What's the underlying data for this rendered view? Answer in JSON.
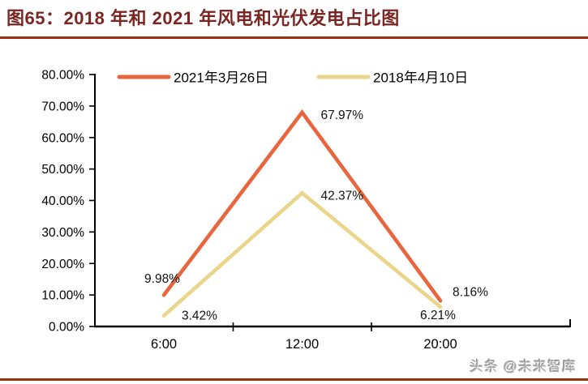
{
  "figure": {
    "title": "图65：2018 年和 2021 年风电和光伏发电占比图",
    "watermark": "头条 @未来智库",
    "title_color": "#7A2622",
    "rule_color": "#9C2F0C"
  },
  "chart_data": {
    "type": "line",
    "title": "",
    "categories": [
      "6:00",
      "12:00",
      "20:00"
    ],
    "series": [
      {
        "name": "2021年3月26日",
        "color": "#E7663E",
        "values": [
          9.98,
          67.97,
          8.16
        ],
        "value_labels": [
          "9.98%",
          "67.97%",
          "8.16%"
        ]
      },
      {
        "name": "2018年4月10日",
        "color": "#EAD58A",
        "values": [
          3.42,
          42.37,
          6.21
        ],
        "value_labels": [
          "3.42%",
          "42.37%",
          "6.21%"
        ]
      }
    ],
    "xlabel": "",
    "ylabel": "",
    "ylim": [
      0,
      80
    ],
    "y_tick_step": 10,
    "y_tick_labels": [
      "0.00%",
      "10.00%",
      "20.00%",
      "30.00%",
      "40.00%",
      "50.00%",
      "60.00%",
      "70.00%",
      "80.00%"
    ],
    "legend_position": "top",
    "grid": false,
    "data_labels": true,
    "axis_color": "#000000"
  }
}
